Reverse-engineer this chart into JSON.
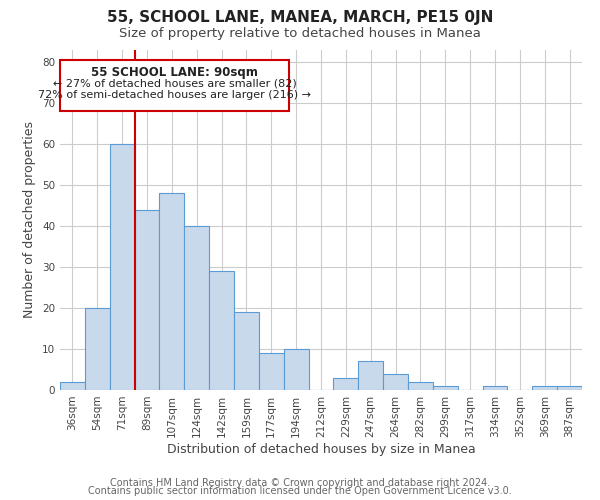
{
  "title": "55, SCHOOL LANE, MANEA, MARCH, PE15 0JN",
  "subtitle": "Size of property relative to detached houses in Manea",
  "xlabel": "Distribution of detached houses by size in Manea",
  "ylabel": "Number of detached properties",
  "bar_labels": [
    "36sqm",
    "54sqm",
    "71sqm",
    "89sqm",
    "107sqm",
    "124sqm",
    "142sqm",
    "159sqm",
    "177sqm",
    "194sqm",
    "212sqm",
    "229sqm",
    "247sqm",
    "264sqm",
    "282sqm",
    "299sqm",
    "317sqm",
    "334sqm",
    "352sqm",
    "369sqm",
    "387sqm"
  ],
  "bar_values": [
    2,
    20,
    60,
    44,
    48,
    40,
    29,
    19,
    9,
    10,
    0,
    3,
    7,
    4,
    2,
    1,
    0,
    1,
    0,
    1,
    1
  ],
  "bar_color": "#c9d9ec",
  "bar_edge_color": "#5b9bd5",
  "vline_index": 2,
  "vline_color": "#cc0000",
  "ylim": [
    0,
    83
  ],
  "yticks": [
    0,
    10,
    20,
    30,
    40,
    50,
    60,
    70,
    80
  ],
  "annotation_title": "55 SCHOOL LANE: 90sqm",
  "annotation_line1": "← 27% of detached houses are smaller (82)",
  "annotation_line2": "72% of semi-detached houses are larger (216) →",
  "footer_line1": "Contains HM Land Registry data © Crown copyright and database right 2024.",
  "footer_line2": "Contains public sector information licensed under the Open Government Licence v3.0.",
  "title_fontsize": 11,
  "subtitle_fontsize": 9.5,
  "axis_label_fontsize": 9,
  "tick_fontsize": 7.5,
  "annotation_fontsize_title": 8.5,
  "annotation_fontsize_lines": 8.0,
  "footer_fontsize": 7,
  "background_color": "#ffffff",
  "grid_color": "#cccccc"
}
